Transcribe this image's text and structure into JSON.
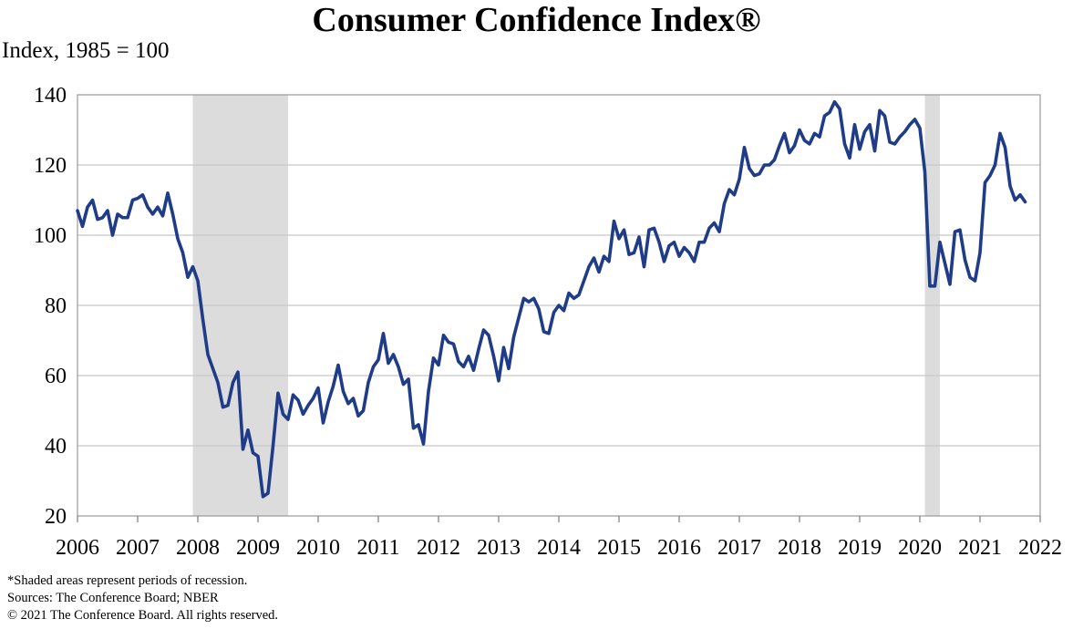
{
  "chart_data": {
    "type": "line",
    "title": "Consumer Confidence Index®",
    "ylabel": "Index, 1985 = 100",
    "xlabel": "",
    "ylim": [
      20,
      140
    ],
    "xlim": [
      2006.0,
      2022.0
    ],
    "y_ticks": [
      20,
      40,
      60,
      80,
      100,
      120,
      140
    ],
    "x_tick_labels": [
      "2006",
      "2007",
      "2008",
      "2009",
      "2010",
      "2011",
      "2012",
      "2013",
      "2014",
      "2015",
      "2016",
      "2017",
      "2018",
      "2019",
      "2020",
      "2021",
      "2022"
    ],
    "grid": "horizontal",
    "legend": "none",
    "recessions": [
      {
        "start": "2007-12",
        "end": "2009-06"
      },
      {
        "start": "2020-02",
        "end": "2020-04"
      }
    ],
    "series": [
      {
        "color": "#1f3c88",
        "start": "2006-01",
        "frequency": "monthly",
        "values": [
          107,
          102.5,
          108,
          110,
          104.5,
          105,
          107,
          100,
          106,
          105,
          105,
          110,
          110.5,
          111.5,
          108,
          106,
          108,
          105.5,
          112,
          106,
          99,
          95,
          88,
          91,
          87,
          76,
          66,
          62,
          58,
          51,
          51.5,
          58,
          61,
          39,
          44.5,
          38,
          37,
          25.5,
          26.5,
          40,
          55,
          49,
          47.5,
          54.5,
          53,
          49,
          51.5,
          53.5,
          56.5,
          46.5,
          52.5,
          57,
          63,
          55.5,
          52,
          53.5,
          48.5,
          50,
          58,
          62.5,
          64.5,
          72,
          63.5,
          66,
          62.5,
          57.5,
          59,
          45,
          46,
          40.5,
          55.5,
          65,
          63,
          71.5,
          69.5,
          69,
          64,
          62.5,
          65.5,
          61.5,
          67.5,
          73,
          71.5,
          65.5,
          58.5,
          68,
          62,
          71,
          76.5,
          82,
          81,
          82,
          79,
          72.5,
          72,
          78,
          80,
          78.5,
          83.5,
          82,
          83,
          87,
          91,
          93.5,
          89.5,
          94,
          92.5,
          104,
          99,
          101.5,
          94.5,
          95,
          99.5,
          91,
          101.5,
          102,
          98,
          92.5,
          97,
          98,
          94,
          96.5,
          95,
          92.5,
          98,
          98,
          102,
          103.5,
          101,
          109,
          113,
          111.5,
          116,
          125,
          119,
          117,
          117.5,
          120,
          120,
          121.5,
          125.5,
          129,
          123.5,
          125.5,
          130,
          127,
          126,
          129,
          128,
          134,
          135,
          138,
          136,
          126,
          122,
          131.5,
          124.5,
          129.5,
          131.5,
          124,
          135.5,
          134,
          126.5,
          126,
          128,
          129.5,
          131.5,
          133,
          130.5,
          118,
          85.5,
          85.5,
          98,
          92,
          86,
          101,
          101.5,
          93,
          88,
          87,
          95,
          115,
          117,
          120,
          129,
          125,
          114,
          110,
          111.5,
          109.5
        ]
      }
    ]
  },
  "notes": {
    "line1": "*Shaded areas represent periods of recession.",
    "line2": "Sources: The Conference Board; NBER",
    "line3": "© 2021 The Conference Board. All rights reserved."
  }
}
